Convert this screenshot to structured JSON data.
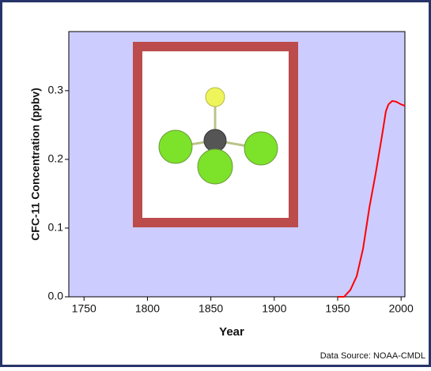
{
  "chart_data": {
    "type": "line",
    "x_label": "Year",
    "y_label": "CFC-11 Concentration (ppbv)",
    "source": "Data Source: NOAA-CMDL",
    "x": [
      1950,
      1955,
      1960,
      1965,
      1970,
      1975,
      1980,
      1985,
      1988,
      1990,
      1993,
      1996,
      2000,
      2003
    ],
    "series": [
      {
        "color": "#ff0000",
        "values": [
          0.0,
          0.0,
          0.01,
          0.03,
          0.07,
          0.13,
          0.18,
          0.235,
          0.27,
          0.28,
          0.285,
          0.284,
          0.28,
          0.278
        ]
      }
    ],
    "xlim": [
      1738,
      2003
    ],
    "xticks": [
      1750,
      1800,
      1850,
      1900,
      1950,
      2000
    ],
    "ylim": [
      0,
      0.386
    ],
    "yticks": [
      {
        "value": 0,
        "label": "0.0"
      },
      0.1,
      0.2,
      0.3
    ],
    "plot_color": "#ccccff"
  }
}
